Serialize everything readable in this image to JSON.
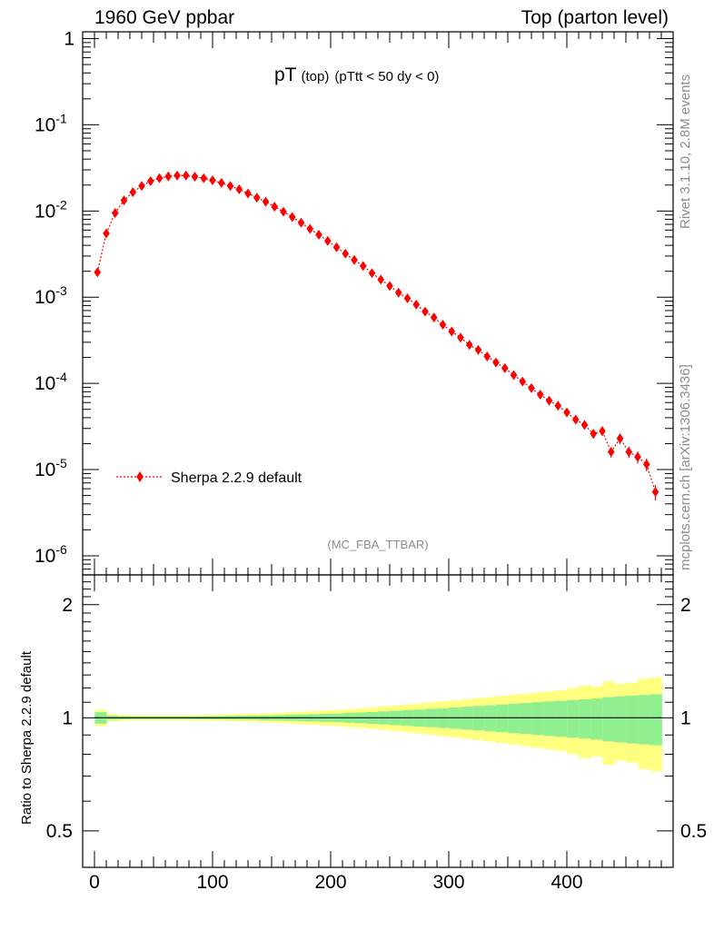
{
  "header": {
    "left": "1960 GeV ppbar",
    "right": "Top (parton level)"
  },
  "side_labels": {
    "rivet": "Rivet 3.1.10,  2.8M events",
    "mcplots": "mcplots.cern.ch [arXiv:1306.3436]"
  },
  "chart_data": [
    {
      "type": "scatter",
      "title": "pT",
      "title_suffix": "(top)",
      "subtitle": "(pTtt < 50 dy < 0)",
      "watermark": "(MC_FBA_TTBAR)",
      "xlabel": "",
      "ylabel": "",
      "xlim": [
        -10,
        490
      ],
      "ylim": [
        6e-07,
        1.2
      ],
      "ylog": true,
      "yticks": [
        "1",
        "10^-1",
        "10^-2",
        "10^-3",
        "10^-4",
        "10^-5",
        "10^-6"
      ],
      "legend": {
        "placement": "bottom-left",
        "marker": "diamond",
        "line": "dotted"
      },
      "color": "#ff0000",
      "series": [
        {
          "name": "Sherpa 2.2.9 default",
          "x": [
            2.5,
            10,
            17.5,
            25,
            32.5,
            40,
            47.5,
            55,
            62.5,
            70,
            77.5,
            85,
            92.5,
            100,
            107.5,
            115,
            122.5,
            130,
            137.5,
            145,
            152.5,
            160,
            167.5,
            175,
            182.5,
            190,
            197.5,
            205,
            212.5,
            220,
            227.5,
            235,
            242.5,
            250,
            257.5,
            265,
            272.5,
            280,
            287.5,
            295,
            302.5,
            310,
            317.5,
            325,
            332.5,
            340,
            347.5,
            355,
            362.5,
            370,
            377.5,
            385,
            392.5,
            400,
            407.5,
            415,
            422.5,
            430,
            437.5,
            445,
            452.5,
            460,
            467.5,
            475
          ],
          "y": [
            0.00195,
            0.0055,
            0.0095,
            0.0133,
            0.0165,
            0.0195,
            0.0222,
            0.024,
            0.0252,
            0.0258,
            0.0258,
            0.025,
            0.024,
            0.0227,
            0.0212,
            0.0195,
            0.0178,
            0.016,
            0.0143,
            0.0128,
            0.0112,
            0.0098,
            0.0085,
            0.0073,
            0.0062,
            0.0053,
            0.0045,
            0.0038,
            0.0032,
            0.0027,
            0.0023,
            0.0019,
            0.0016,
            0.00135,
            0.00113,
            0.00097,
            0.00082,
            0.00068,
            0.00058,
            0.00048,
            0.0004,
            0.00034,
            0.00028,
            0.000245,
            0.000205,
            0.000175,
            0.00015,
            0.000125,
            0.000105,
            8.8e-05,
            7.4e-05,
            6.3e-05,
            5.5e-05,
            4.6e-05,
            3.8e-05,
            3.3e-05,
            2.6e-05,
            2.8e-05,
            1.6e-05,
            2.3e-05,
            1.6e-05,
            1.4e-05,
            1.15e-05,
            5.5e-06
          ],
          "err_frac": [
            0.02,
            0.01,
            0.01,
            0.01,
            0.01,
            0.01,
            0.01,
            0.01,
            0.01,
            0.01,
            0.01,
            0.01,
            0.01,
            0.01,
            0.01,
            0.01,
            0.01,
            0.01,
            0.01,
            0.01,
            0.01,
            0.01,
            0.01,
            0.01,
            0.01,
            0.01,
            0.01,
            0.01,
            0.01,
            0.02,
            0.02,
            0.02,
            0.02,
            0.02,
            0.02,
            0.02,
            0.03,
            0.03,
            0.03,
            0.03,
            0.04,
            0.04,
            0.04,
            0.05,
            0.05,
            0.05,
            0.06,
            0.06,
            0.07,
            0.07,
            0.08,
            0.08,
            0.09,
            0.1,
            0.1,
            0.11,
            0.12,
            0.12,
            0.14,
            0.14,
            0.15,
            0.16,
            0.17,
            0.2
          ]
        }
      ]
    },
    {
      "type": "area",
      "ylabel": "Ratio to Sherpa 2.2.9 default",
      "xlabel": "",
      "xlim": [
        -10,
        490
      ],
      "ylim": [
        0.4,
        2.4
      ],
      "ylog": true,
      "yticks": [
        0.5,
        1,
        2
      ],
      "xticks": [
        0,
        100,
        200,
        300,
        400
      ],
      "reference_line": 1,
      "bands": [
        {
          "name": "stat",
          "color": "#90f090"
        },
        {
          "name": "syst",
          "color": "#ffff80"
        }
      ],
      "x_edges": [
        0,
        10,
        20,
        30,
        40,
        50,
        60,
        70,
        80,
        90,
        100,
        110,
        120,
        130,
        140,
        150,
        160,
        170,
        180,
        190,
        200,
        210,
        220,
        230,
        240,
        250,
        260,
        270,
        280,
        290,
        300,
        310,
        320,
        330,
        340,
        350,
        360,
        370,
        380,
        390,
        400,
        410,
        420,
        430,
        440,
        450,
        460,
        470,
        480
      ],
      "green_half_width": [
        0.035,
        0.012,
        0.009,
        0.008,
        0.008,
        0.008,
        0.008,
        0.008,
        0.008,
        0.009,
        0.01,
        0.011,
        0.012,
        0.013,
        0.015,
        0.016,
        0.018,
        0.02,
        0.022,
        0.024,
        0.026,
        0.03,
        0.033,
        0.036,
        0.04,
        0.044,
        0.048,
        0.052,
        0.056,
        0.06,
        0.065,
        0.07,
        0.075,
        0.08,
        0.085,
        0.09,
        0.095,
        0.1,
        0.105,
        0.11,
        0.115,
        0.12,
        0.125,
        0.135,
        0.14,
        0.145,
        0.15,
        0.155
      ],
      "yellow_half_width": [
        0.05,
        0.022,
        0.018,
        0.016,
        0.016,
        0.016,
        0.016,
        0.016,
        0.017,
        0.018,
        0.019,
        0.021,
        0.023,
        0.025,
        0.028,
        0.031,
        0.034,
        0.038,
        0.042,
        0.046,
        0.05,
        0.055,
        0.06,
        0.066,
        0.072,
        0.078,
        0.085,
        0.092,
        0.099,
        0.106,
        0.113,
        0.12,
        0.128,
        0.136,
        0.144,
        0.152,
        0.16,
        0.168,
        0.176,
        0.184,
        0.2,
        0.22,
        0.21,
        0.25,
        0.23,
        0.24,
        0.27,
        0.28
      ]
    }
  ]
}
